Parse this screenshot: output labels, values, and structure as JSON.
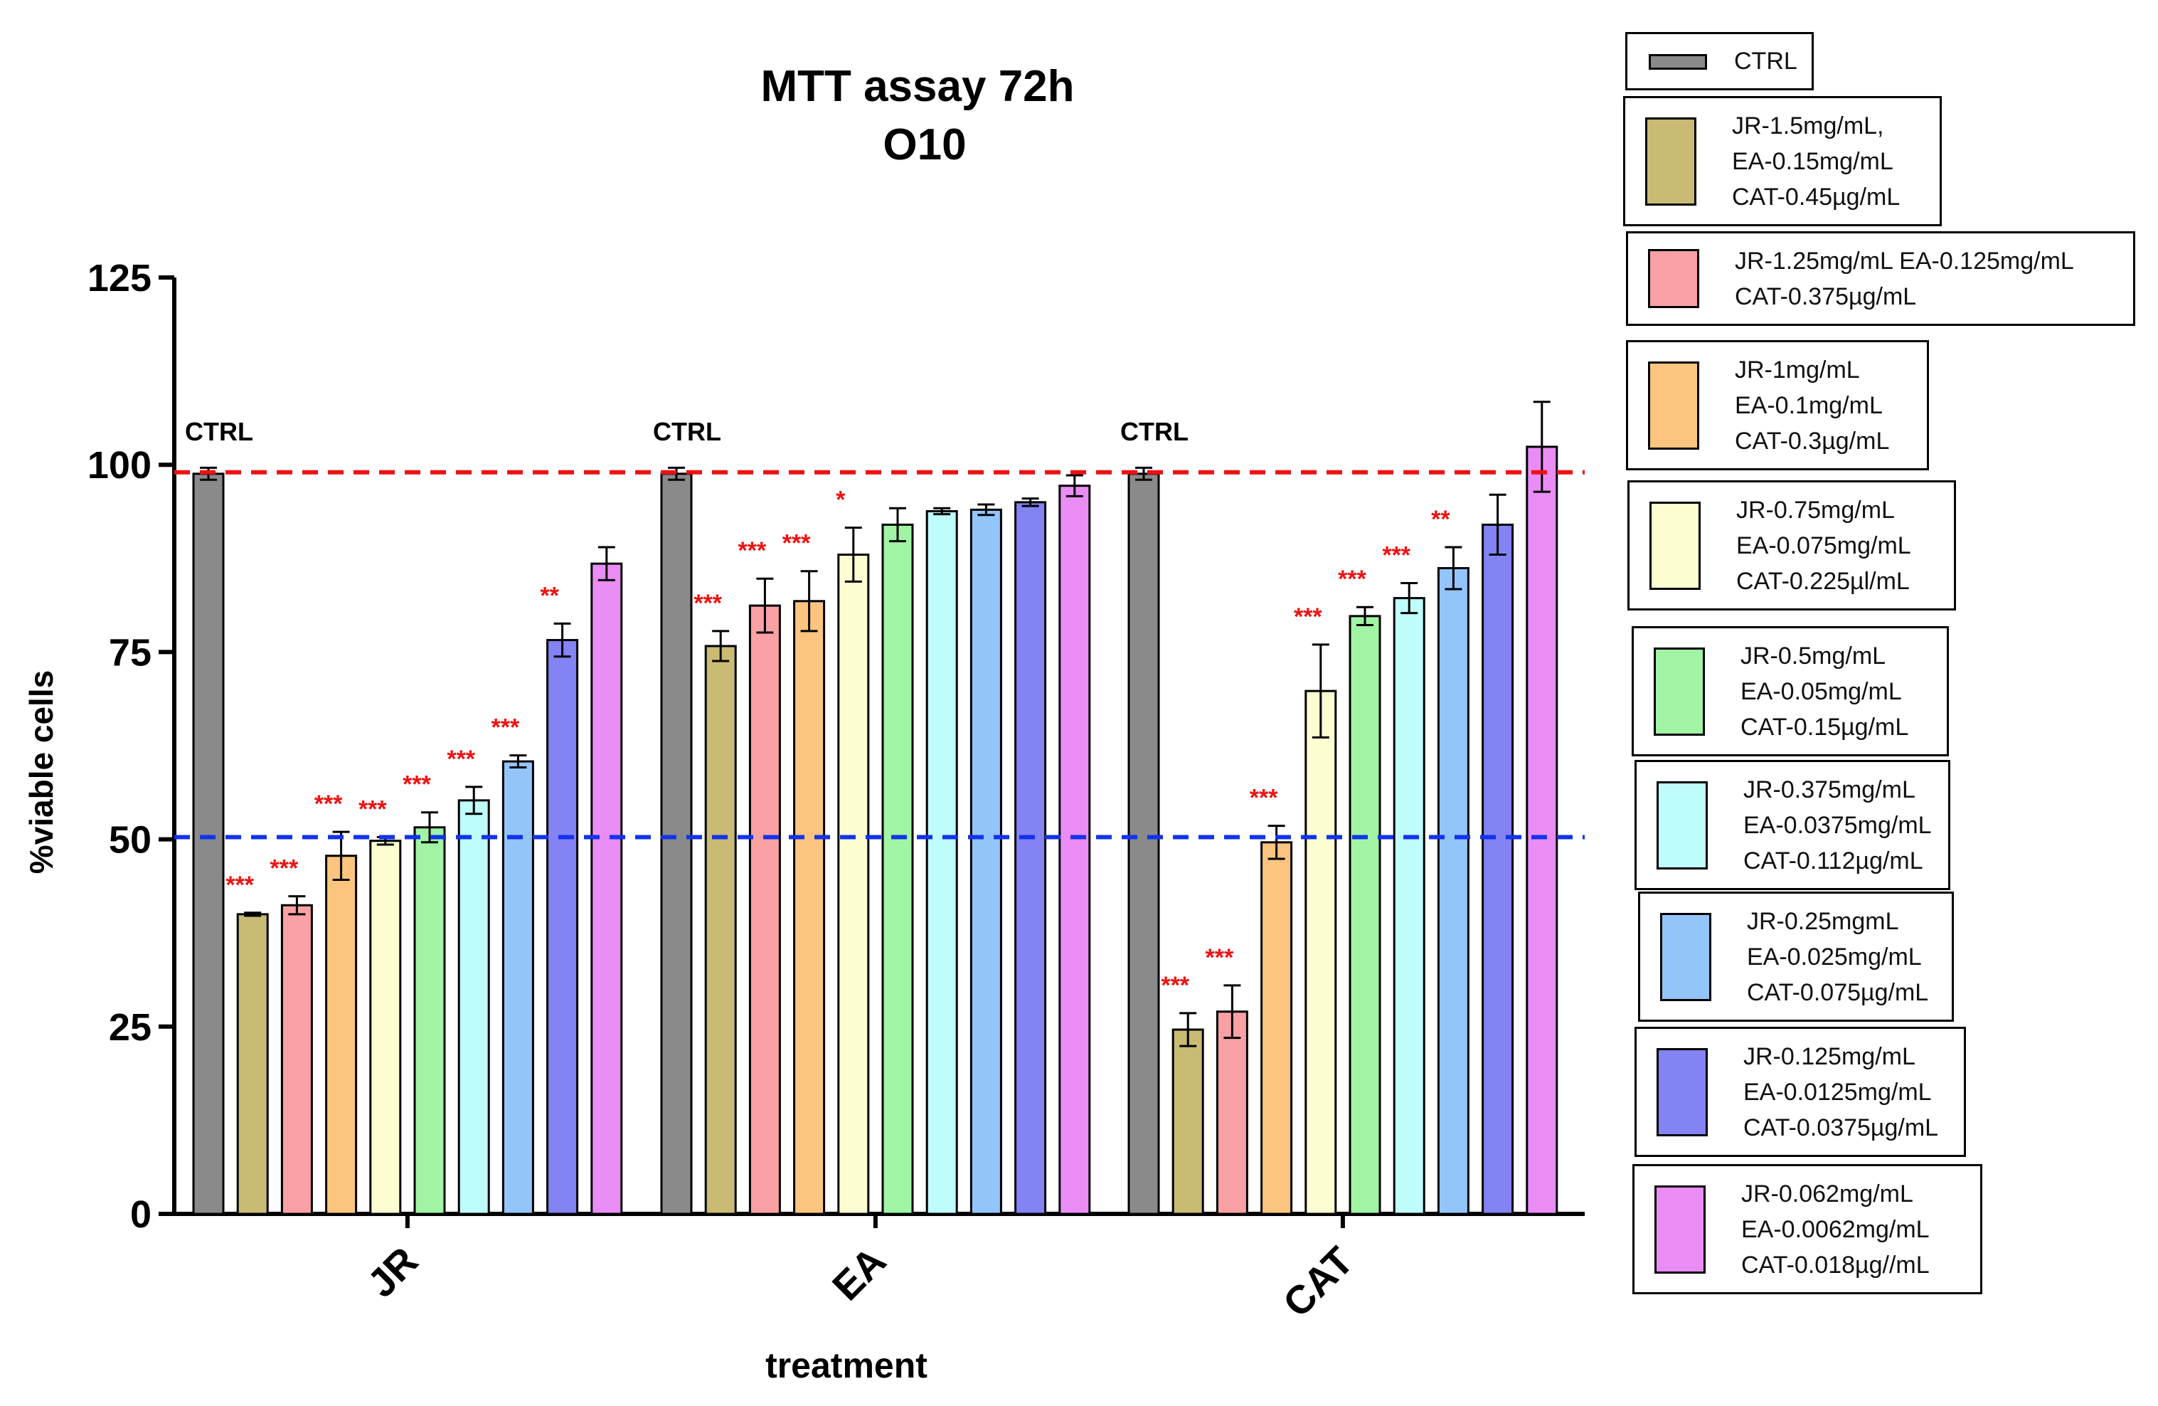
{
  "chart_data": {
    "type": "bar",
    "title": "MTT assay 72h",
    "subtitle": "O10",
    "xlabel": "treatment",
    "ylabel": "%viable cells",
    "ylim": [
      0,
      125
    ],
    "yticks": [
      0,
      25,
      50,
      75,
      100,
      125
    ],
    "categories": [
      "JR",
      "EA",
      "CAT"
    ],
    "reference_lines": [
      {
        "value": 99,
        "color": "#ee1111",
        "style": "dashed"
      },
      {
        "value": 50.3,
        "color": "#1133ee",
        "style": "dashed"
      }
    ],
    "control_label": "CTRL",
    "series": [
      {
        "name": "CTRL",
        "color": "#8a8a8a",
        "legend": [
          "CTRL"
        ],
        "values": [
          98.8,
          98.8,
          98.8
        ],
        "errors": [
          0.8,
          0.8,
          0.8
        ],
        "sig": [
          "",
          "",
          ""
        ]
      },
      {
        "name": "JR-1.5mg/mL, EA-0.15mg/mL CAT-0.45µg/mL",
        "color": "#c9bb74",
        "legend": [
          "JR-1.5mg/mL,",
          "EA-0.15mg/mL",
          "CAT-0.45µg/mL"
        ],
        "values": [
          40.0,
          75.8,
          24.6
        ],
        "errors": [
          0.2,
          2.0,
          2.2
        ],
        "sig": [
          "***",
          "***",
          "***"
        ]
      },
      {
        "name": "JR-1.25mg/mL EA-0.125mg/mL CAT-0.375µg/mL",
        "color": "#f9a1a5",
        "legend": [
          "JR-1.25mg/mL EA-0.125mg/mL",
          "CAT-0.375µg/mL"
        ],
        "values": [
          41.2,
          81.2,
          27.0
        ],
        "errors": [
          1.2,
          3.6,
          3.5
        ],
        "sig": [
          "***",
          "***",
          "***"
        ]
      },
      {
        "name": "JR-1mg/mL EA-0.1mg/mL CAT-0.3µg/mL",
        "color": "#fbc57f",
        "legend": [
          "JR-1mg/mL",
          "EA-0.1mg/mL",
          "CAT-0.3µg/mL"
        ],
        "values": [
          47.8,
          81.8,
          49.6
        ],
        "errors": [
          3.2,
          4.0,
          2.2
        ],
        "sig": [
          "***",
          "***",
          "***"
        ]
      },
      {
        "name": "JR-0.75mg/mL EA-0.075mg/mL CAT-0.225µl/mL",
        "color": "#fdfdd2",
        "legend": [
          "JR-0.75mg/mL",
          "EA-0.075mg/mL",
          "CAT-0.225µl/mL"
        ],
        "values": [
          49.8,
          88.0,
          69.8
        ],
        "errors": [
          0.5,
          3.6,
          6.2
        ],
        "sig": [
          "***",
          "*",
          "***"
        ]
      },
      {
        "name": "JR-0.5mg/mL EA-0.05mg/mL CAT-0.15µg/mL",
        "color": "#a0f4a4",
        "legend": [
          "JR-0.5mg/mL",
          " EA-0.05mg/mL",
          "CAT-0.15µg/mL"
        ],
        "values": [
          51.6,
          92.0,
          79.8
        ],
        "errors": [
          2.0,
          2.2,
          1.2
        ],
        "sig": [
          "***",
          "",
          "***"
        ]
      },
      {
        "name": "JR-0.375mg/mL EA-0.0375mg/mL CAT-0.112µg/mL",
        "color": "#bffcfc",
        "legend": [
          "JR-0.375mg/mL",
          "EA-0.0375mg/mL",
          "CAT-0.112µg/mL"
        ],
        "values": [
          55.2,
          93.8,
          82.2
        ],
        "errors": [
          1.8,
          0.4,
          2.0
        ],
        "sig": [
          "***",
          "",
          "***"
        ]
      },
      {
        "name": "JR-0.25mgmL EA-0.025mg/mL CAT-0.075µg/mL",
        "color": "#93c5fb",
        "legend": [
          "JR-0.25mgmL",
          " EA-0.025mg/mL",
          "CAT-0.075µg/mL"
        ],
        "values": [
          60.4,
          94.0,
          86.2
        ],
        "errors": [
          0.8,
          0.7,
          2.8
        ],
        "sig": [
          "***",
          "",
          "**"
        ]
      },
      {
        "name": "JR-0.125mg/mL EA-0.0125mg/mL CAT-0.0375µg/mL",
        "color": "#8383f3",
        "legend": [
          "JR-0.125mg/mL",
          "EA-0.0125mg/mL",
          "CAT-0.0375µg/mL"
        ],
        "values": [
          76.6,
          95.0,
          92.0
        ],
        "errors": [
          2.2,
          0.5,
          4.0
        ],
        "sig": [
          "**",
          "",
          ""
        ]
      },
      {
        "name": "JR-0.062mg/mL EA-0.0062mg/mL CAT-0.018µg//mL",
        "color": "#e98df5",
        "legend": [
          "JR-0.062mg/mL",
          "EA-0.0062mg/mL",
          "CAT-0.018µg//mL"
        ],
        "values": [
          86.8,
          97.2,
          102.4
        ],
        "errors": [
          2.2,
          1.4,
          6.0
        ],
        "sig": [
          "",
          "",
          ""
        ]
      }
    ]
  }
}
